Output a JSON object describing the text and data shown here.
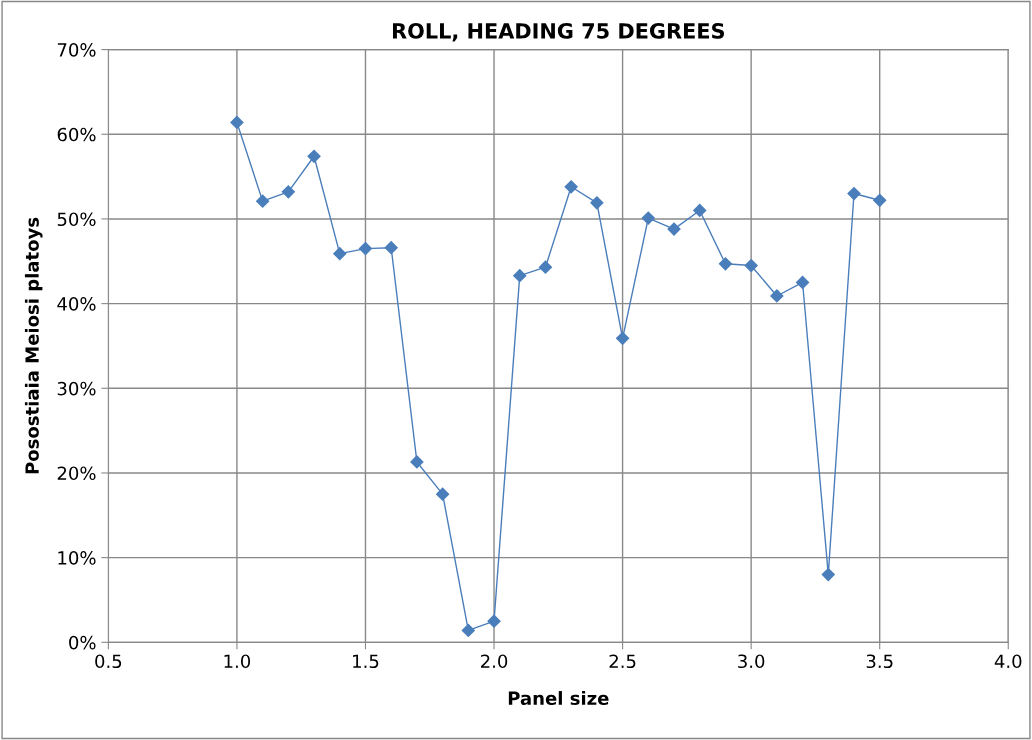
{
  "chart_data": {
    "type": "line",
    "title": "ROLL, HEADING 75 DEGREES",
    "xlabel": "Panel size",
    "ylabel": "Posostiaia Meiosi platoys",
    "x": [
      1.0,
      1.1,
      1.2,
      1.3,
      1.4,
      1.5,
      1.6,
      1.7,
      1.8,
      1.9,
      2.0,
      2.1,
      2.2,
      2.3,
      2.4,
      2.5,
      2.6,
      2.7,
      2.8,
      2.9,
      3.0,
      3.1,
      3.2,
      3.3,
      3.4,
      3.5
    ],
    "series": [
      {
        "color": "#4a7ebb",
        "values": [
          61.4,
          52.1,
          53.2,
          57.4,
          45.9,
          46.5,
          46.6,
          21.3,
          17.5,
          1.4,
          2.5,
          43.3,
          44.3,
          53.8,
          51.9,
          35.9,
          50.1,
          48.8,
          51.0,
          44.7,
          44.5,
          40.9,
          42.5,
          8.0,
          53.0,
          52.2
        ]
      }
    ],
    "xlim": [
      0.5,
      4.0
    ],
    "xticks": [
      {
        "value": 0.5,
        "label": "0.5"
      },
      {
        "value": 1.0,
        "label": "1.0"
      },
      {
        "value": 1.5,
        "label": "1.5"
      },
      {
        "value": 2.0,
        "label": "2.0"
      },
      {
        "value": 2.5,
        "label": "2.5"
      },
      {
        "value": 3.0,
        "label": "3.0"
      },
      {
        "value": 3.5,
        "label": "3.5"
      },
      {
        "value": 4.0,
        "label": "4.0"
      }
    ],
    "ylim": [
      0,
      70
    ],
    "yticks": [
      {
        "value": 0,
        "label": "0%"
      },
      {
        "value": 10,
        "label": "10%"
      },
      {
        "value": 20,
        "label": "20%"
      },
      {
        "value": 30,
        "label": "30%"
      },
      {
        "value": 40,
        "label": "40%"
      },
      {
        "value": 50,
        "label": "50%"
      },
      {
        "value": 60,
        "label": "60%"
      },
      {
        "value": 70,
        "label": "70%"
      }
    ],
    "grid": true,
    "marker": "diamond",
    "line_style": "solid"
  }
}
